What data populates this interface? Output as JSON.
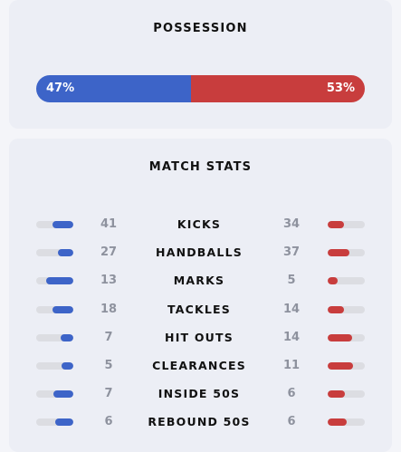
{
  "possession": {
    "title": "POSSESSION",
    "home_pct": 47,
    "away_pct": 53,
    "home_label": "47%",
    "away_label": "53%"
  },
  "match_stats": {
    "title": "MATCH STATS",
    "rows": [
      {
        "label": "KICKS",
        "home": "41",
        "away": "34",
        "home_fill": 0.55,
        "away_fill": 0.45
      },
      {
        "label": "HANDBALLS",
        "home": "27",
        "away": "37",
        "home_fill": 0.42,
        "away_fill": 0.58
      },
      {
        "label": "MARKS",
        "home": "13",
        "away": "5",
        "home_fill": 0.72,
        "away_fill": 0.28
      },
      {
        "label": "TACKLES",
        "home": "18",
        "away": "14",
        "home_fill": 0.56,
        "away_fill": 0.44
      },
      {
        "label": "HIT OUTS",
        "home": "7",
        "away": "14",
        "home_fill": 0.33,
        "away_fill": 0.67
      },
      {
        "label": "CLEARANCES",
        "home": "5",
        "away": "11",
        "home_fill": 0.31,
        "away_fill": 0.69
      },
      {
        "label": "INSIDE 50S",
        "home": "7",
        "away": "6",
        "home_fill": 0.54,
        "away_fill": 0.46
      },
      {
        "label": "REBOUND 50S",
        "home": "6",
        "away": "6",
        "home_fill": 0.5,
        "away_fill": 0.5
      }
    ]
  },
  "colors": {
    "home": "#3d64c8",
    "away": "#c83d3d"
  }
}
